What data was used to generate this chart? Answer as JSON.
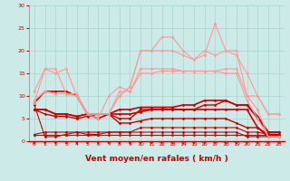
{
  "x": [
    0,
    1,
    2,
    3,
    4,
    5,
    6,
    7,
    8,
    9,
    10,
    11,
    12,
    13,
    14,
    15,
    16,
    17,
    18,
    19,
    20,
    21,
    22,
    23
  ],
  "lines": [
    {
      "y": [
        1.5,
        1.5,
        1.5,
        1.5,
        1.5,
        1.5,
        1.5,
        1.5,
        1.5,
        1.5,
        1.5,
        1.5,
        1.5,
        1.5,
        1.5,
        1.5,
        1.5,
        1.5,
        1.5,
        1.5,
        1.5,
        1.5,
        1.5,
        1.5
      ],
      "color": "#cc0000",
      "lw": 0.8,
      "marker": "D",
      "ms": 1.5
    },
    {
      "y": [
        1.5,
        2,
        2,
        2,
        2,
        2,
        2,
        2,
        2,
        2,
        3,
        3,
        3,
        3,
        3,
        3,
        3,
        3,
        3,
        3,
        2,
        2,
        1.5,
        1.5
      ],
      "color": "#cc0000",
      "lw": 0.8,
      "marker": "D",
      "ms": 1.5
    },
    {
      "y": [
        8,
        1,
        1,
        1.5,
        2,
        1.5,
        1.5,
        2,
        2,
        2,
        2,
        2,
        2,
        2,
        2,
        2,
        2,
        2,
        2,
        2,
        1,
        1,
        1,
        1
      ],
      "color": "#cc0000",
      "lw": 0.8,
      "marker": "D",
      "ms": 1.5
    },
    {
      "y": [
        7,
        6,
        5.5,
        5.5,
        5,
        5.5,
        6,
        6,
        4,
        4,
        4.5,
        5,
        5,
        5,
        5,
        5,
        5,
        5,
        5,
        4,
        3,
        3,
        1.5,
        1.5
      ],
      "color": "#cc0000",
      "lw": 1.0,
      "marker": "D",
      "ms": 1.5
    },
    {
      "y": [
        7,
        7,
        6,
        6,
        5.5,
        6,
        6,
        6,
        5,
        5,
        7,
        7,
        7,
        7,
        7,
        7,
        8,
        8,
        9,
        8,
        8,
        5,
        2,
        2
      ],
      "color": "#cc0000",
      "lw": 1.0,
      "marker": "D",
      "ms": 1.5
    },
    {
      "y": [
        7,
        7,
        6,
        6,
        5.5,
        6,
        6,
        6,
        7,
        7,
        7.5,
        7.5,
        7.5,
        7.5,
        8,
        8,
        9,
        9,
        9,
        8,
        8,
        5.5,
        2,
        2
      ],
      "color": "#cc0000",
      "lw": 1.2,
      "marker": "D",
      "ms": 1.5
    },
    {
      "y": [
        8.5,
        11,
        11,
        11,
        10,
        6,
        5,
        6,
        6,
        6,
        6.5,
        7,
        7,
        7,
        7,
        7,
        7,
        7,
        7,
        7,
        7,
        3,
        1,
        1
      ],
      "color": "#cc0000",
      "lw": 1.2,
      "marker": "D",
      "ms": 1.5
    },
    {
      "y": [
        8.5,
        16,
        15,
        16,
        10,
        6,
        5,
        10,
        12,
        11,
        15,
        15,
        15.5,
        15.5,
        15.5,
        15.5,
        15.5,
        15.5,
        15,
        15,
        9,
        5,
        1,
        1
      ],
      "color": "#ff9999",
      "lw": 0.8,
      "marker": "D",
      "ms": 1.5
    },
    {
      "y": [
        11,
        16,
        16,
        10.5,
        10.5,
        6,
        6,
        6,
        11,
        11,
        16,
        16,
        16,
        16,
        15.5,
        15.5,
        15.5,
        15.5,
        16,
        16,
        10,
        7,
        1,
        1
      ],
      "color": "#ff9999",
      "lw": 0.8,
      "marker": "D",
      "ms": 1.5
    },
    {
      "y": [
        9,
        11,
        10.5,
        10.5,
        10,
        6,
        6,
        6,
        10,
        12,
        20,
        20,
        23,
        23,
        20,
        18,
        19,
        26,
        20,
        20,
        10,
        10,
        6,
        6
      ],
      "color": "#ff9999",
      "lw": 0.8,
      "marker": "D",
      "ms": 1.5
    },
    {
      "y": [
        9,
        11,
        10.5,
        10.5,
        10,
        6,
        6,
        6,
        10,
        12,
        20,
        20,
        20,
        20,
        19,
        18,
        20,
        19,
        20,
        19,
        15,
        10,
        6,
        6
      ],
      "color": "#ff9999",
      "lw": 0.8,
      "marker": "D",
      "ms": 1.5
    }
  ],
  "bg_color": "#cceae7",
  "grid_color": "#aad4d0",
  "xlabel": "Vent moyen/en rafales ( km/h )",
  "xlabel_color": "#cc0000",
  "xlabel_fontsize": 6.5,
  "tick_color": "#cc0000",
  "arrow_color": "#cc0000",
  "ylim": [
    0,
    30
  ],
  "yticks": [
    0,
    5,
    10,
    15,
    20,
    25,
    30
  ],
  "xlim": [
    -0.5,
    23.5
  ]
}
